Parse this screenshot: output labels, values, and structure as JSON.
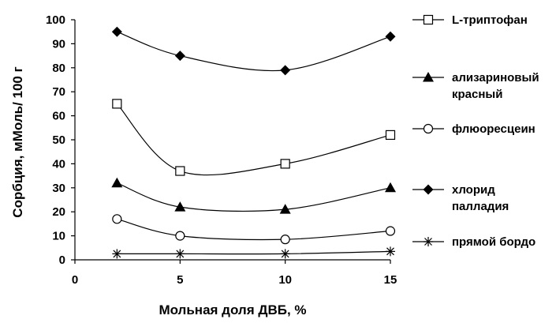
{
  "chart_data": {
    "type": "line",
    "xlabel": "Мольная доля ДВБ, %",
    "ylabel": "Сорбция, мМоль/ 100 г",
    "xlim": [
      0,
      15
    ],
    "ylim": [
      0,
      100
    ],
    "xticks": [
      0,
      5,
      10,
      15
    ],
    "yticks": [
      0,
      10,
      20,
      30,
      40,
      50,
      60,
      70,
      80,
      90,
      100
    ],
    "x": [
      2,
      5,
      10,
      15
    ],
    "grid": false,
    "legend_position": "right",
    "series": [
      {
        "name": "L-триптофан",
        "label_lines": [
          "L-триптофан"
        ],
        "marker": "open-square",
        "values": [
          65,
          37,
          40,
          52
        ]
      },
      {
        "name": "ализариновый красный",
        "label_lines": [
          "ализариновый",
          "красный"
        ],
        "marker": "filled-triangle",
        "values": [
          32,
          22,
          21,
          30
        ]
      },
      {
        "name": "флюоресцеин",
        "label_lines": [
          "флюоресцеин"
        ],
        "marker": "open-circle",
        "values": [
          17,
          10,
          8.5,
          12
        ]
      },
      {
        "name": "хлорид палладия",
        "label_lines": [
          "хлорид",
          "палладия"
        ],
        "marker": "filled-diamond",
        "values": [
          95,
          85,
          79,
          93
        ]
      },
      {
        "name": "прямой бордо",
        "label_lines": [
          "прямой бордо"
        ],
        "marker": "asterisk",
        "values": [
          2.5,
          2.5,
          2.5,
          3.5
        ]
      }
    ]
  }
}
